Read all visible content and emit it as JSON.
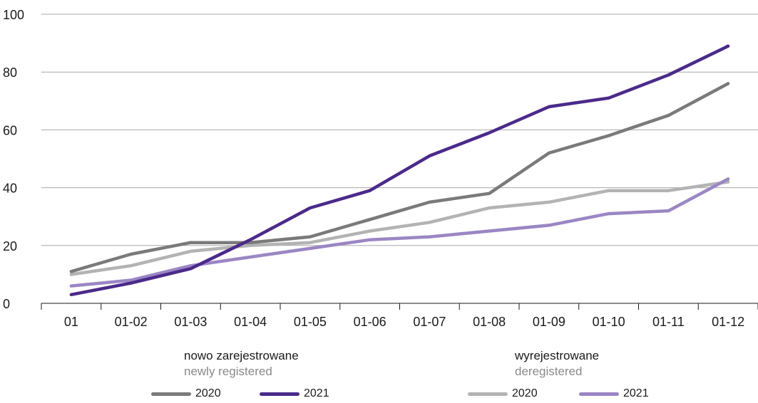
{
  "chart_data": {
    "type": "line",
    "categories": [
      "01",
      "01-02",
      "01-03",
      "01-04",
      "01-05",
      "01-06",
      "01-07",
      "01-08",
      "01-09",
      "01-10",
      "01-11",
      "01-12"
    ],
    "y_ticks": [
      "0",
      "20",
      "40",
      "60",
      "80",
      "100"
    ],
    "ylim": [
      0,
      100
    ],
    "grid": "horizontal",
    "groups": [
      {
        "title": "nowo zarejestrowane",
        "subtitle": "newly registered"
      },
      {
        "title": "wyrejestrowane",
        "subtitle": "deregistered"
      }
    ],
    "series": [
      {
        "name": "2020",
        "group": 0,
        "color": "#7a7a7a",
        "values": [
          11,
          17,
          21,
          21,
          23,
          29,
          35,
          38,
          52,
          58,
          65,
          76
        ]
      },
      {
        "name": "2021",
        "group": 0,
        "color": "#4b2a8a",
        "values": [
          3,
          7,
          12,
          22,
          33,
          39,
          51,
          59,
          68,
          71,
          79,
          89
        ]
      },
      {
        "name": "2020",
        "group": 1,
        "color": "#b3b3b3",
        "values": [
          10,
          13,
          18,
          20,
          21,
          25,
          28,
          33,
          35,
          39,
          39,
          42
        ]
      },
      {
        "name": "2021",
        "group": 1,
        "color": "#9b86c4",
        "values": [
          6,
          8,
          13,
          16,
          19,
          22,
          23,
          25,
          27,
          31,
          32,
          43
        ]
      }
    ]
  }
}
